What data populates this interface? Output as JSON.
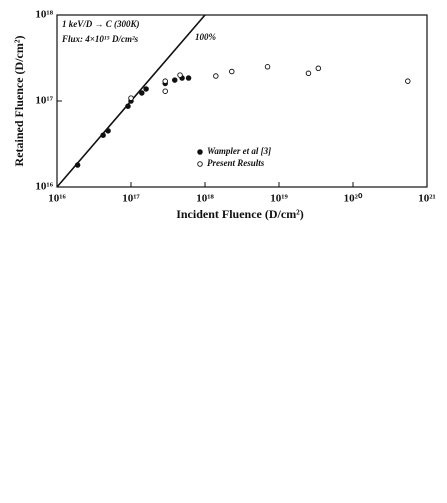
{
  "chart_data": {
    "type": "scatter",
    "xlabel": "Incident Fluence  (D/cm²)",
    "ylabel": "Retained Fluence  (D/cm²)",
    "annotations": [
      "1 keV/D → C  (300K)",
      "Flux: 4×10¹⁵ D/cm²s"
    ],
    "reference_line": {
      "label": "100%",
      "slope": 1
    },
    "xscale": "log",
    "yscale": "log",
    "xlim": [
      1e+16,
      1e+21
    ],
    "ylim": [
      1e+16,
      1e+18
    ],
    "xticks": [
      {
        "value": 1e+16,
        "label": "10¹⁶"
      },
      {
        "value": 1e+17,
        "label": "10¹⁷"
      },
      {
        "value": 1e+18,
        "label": "10¹⁸"
      },
      {
        "value": 1e+19,
        "label": "10¹⁹"
      },
      {
        "value": 1e+20,
        "label": "10²⁰"
      },
      {
        "value": 1e+21,
        "label": "10²¹"
      }
    ],
    "yticks": [
      {
        "value": 1e+16,
        "label": "10¹⁶"
      },
      {
        "value": 1e+17,
        "label": "10¹⁷"
      },
      {
        "value": 1e+18,
        "label": "10¹⁸"
      }
    ],
    "series": [
      {
        "name": "Wampler et al [3]",
        "color": "#111",
        "marker": "filled",
        "x": [
          1.9e+16,
          4.2e+16,
          4.9e+16,
          9.1e+16,
          1e+17,
          1.4e+17,
          1.6e+17,
          2.9e+17,
          3.9e+17,
          4.9e+17,
          6e+17
        ],
        "values": [
          1.8e+16,
          4e+16,
          4.5e+16,
          8.7e+16,
          1e+17,
          1.24e+17,
          1.38e+17,
          1.6e+17,
          1.75e+17,
          1.85e+17,
          1.85e+17
        ]
      },
      {
        "name": "Present Results",
        "color": "#111",
        "marker": "open",
        "x": [
          1e+17,
          2.9e+17,
          2.9e+17,
          4.6e+17,
          1.4e+18,
          2.3e+18,
          7e+18,
          2.5e+19,
          3.4e+19,
          5.5e+20
        ],
        "values": [
          1.08e+17,
          1.7e+17,
          1.3e+17,
          2e+17,
          1.95e+17,
          2.2e+17,
          2.5e+17,
          2.1e+17,
          2.4e+17,
          1.7e+17
        ]
      }
    ]
  }
}
